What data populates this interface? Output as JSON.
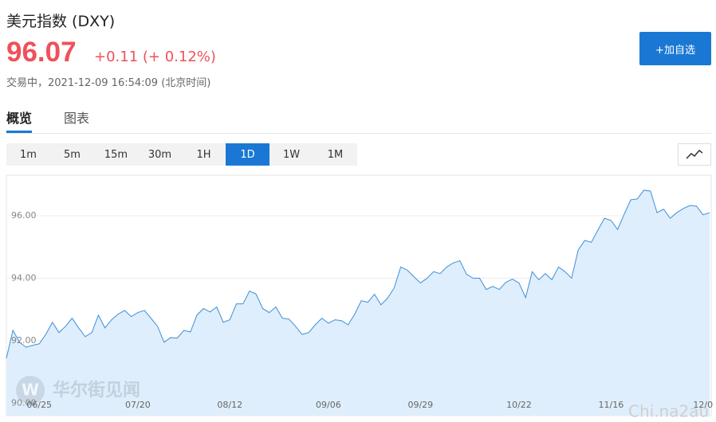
{
  "header": {
    "title": "美元指数 (DXY)",
    "price": "96.07",
    "change": "+0.11 (+ 0.12%)",
    "status": "交易中，2021-12-09 16:54:09 (北京时间)",
    "add_button": "+加自选"
  },
  "tabs": [
    "概览",
    "图表"
  ],
  "periods": [
    "1m",
    "5m",
    "15m",
    "30m",
    "1H",
    "1D",
    "1W",
    "1M"
  ],
  "active_period": "1D",
  "watermark": {
    "logo": "华尔街见闻",
    "site": "Chi.na2au"
  },
  "chart_data": {
    "type": "area",
    "color": "#3d8fd8",
    "fill": "#dfeefc",
    "grid": true,
    "ylim": [
      89.6,
      97.3
    ],
    "yticks": [
      {
        "value": 90,
        "label": "90.00"
      },
      {
        "value": 92,
        "label": "92.00"
      },
      {
        "value": 94,
        "label": "94.00"
      },
      {
        "value": 96,
        "label": "96.00"
      }
    ],
    "categories": [
      null,
      null,
      null,
      null,
      null,
      "06/25",
      null,
      null,
      null,
      null,
      null,
      null,
      null,
      null,
      null,
      null,
      null,
      null,
      null,
      null,
      "07/20",
      null,
      null,
      null,
      null,
      null,
      null,
      null,
      null,
      null,
      null,
      null,
      null,
      null,
      "08/12",
      null,
      null,
      null,
      null,
      null,
      null,
      null,
      null,
      null,
      null,
      null,
      null,
      null,
      null,
      "09/06",
      null,
      null,
      null,
      null,
      null,
      null,
      null,
      null,
      null,
      null,
      null,
      null,
      null,
      "09/29",
      null,
      null,
      null,
      null,
      null,
      null,
      null,
      null,
      null,
      null,
      null,
      null,
      null,
      null,
      "10/22",
      null,
      null,
      null,
      null,
      null,
      null,
      null,
      null,
      null,
      null,
      null,
      null,
      null,
      "11/16",
      null,
      null,
      null,
      null,
      null,
      null,
      null,
      null,
      null,
      null,
      null,
      null,
      null,
      "12/0",
      null
    ],
    "values": [
      91.44,
      92.33,
      91.95,
      91.79,
      91.85,
      91.9,
      92.2,
      92.59,
      92.26,
      92.46,
      92.72,
      92.41,
      92.13,
      92.26,
      92.82,
      92.41,
      92.67,
      92.85,
      92.97,
      92.77,
      92.9,
      92.97,
      92.72,
      92.46,
      91.95,
      92.1,
      92.08,
      92.33,
      92.28,
      92.82,
      93.03,
      92.92,
      93.08,
      92.59,
      92.67,
      93.18,
      93.18,
      93.59,
      93.49,
      93.03,
      92.9,
      93.08,
      92.72,
      92.69,
      92.46,
      92.2,
      92.26,
      92.51,
      92.72,
      92.56,
      92.67,
      92.64,
      92.51,
      92.85,
      93.28,
      93.23,
      93.49,
      93.15,
      93.36,
      93.69,
      94.36,
      94.26,
      94.05,
      93.85,
      94.0,
      94.21,
      94.15,
      94.36,
      94.49,
      94.56,
      94.13,
      94.0,
      94.0,
      93.64,
      93.74,
      93.64,
      93.87,
      93.97,
      93.85,
      93.38,
      94.21,
      93.95,
      94.15,
      93.95,
      94.36,
      94.21,
      94.0,
      94.9,
      95.21,
      95.15,
      95.54,
      95.92,
      95.85,
      95.56,
      96.05,
      96.51,
      96.54,
      96.82,
      96.79,
      96.1,
      96.21,
      95.92,
      96.1,
      96.23,
      96.33,
      96.31,
      96.03,
      96.1
    ]
  }
}
